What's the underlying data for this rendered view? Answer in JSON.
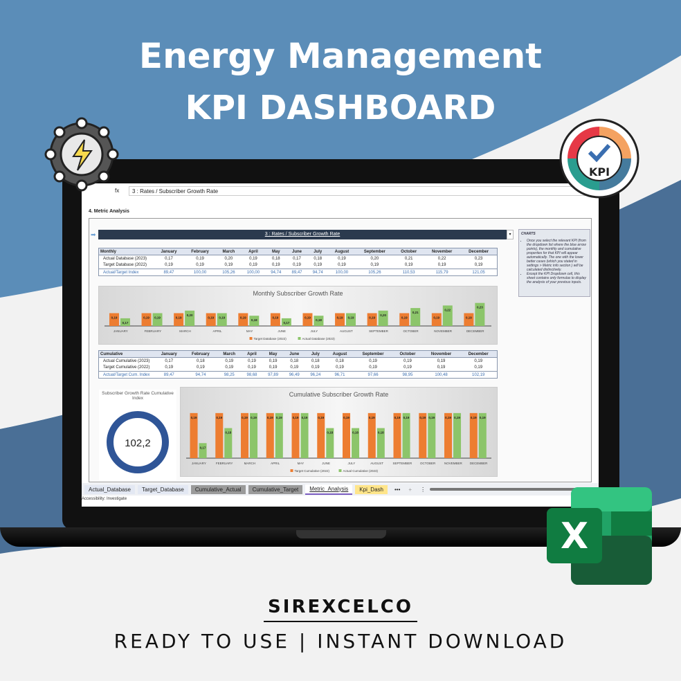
{
  "banner": {
    "title_line1": "Energy Management",
    "title_line2": "KPI DASHBOARD",
    "brand": "SIREXCELCO",
    "tagline": "READY TO USE | INSTANT DOWNLOAD",
    "kpi_badge": "KPI",
    "excel_letter": "X"
  },
  "colors": {
    "target": "#ed7d31",
    "actual": "#8cc56a",
    "header": "#2b3a4e",
    "index_text": "#3a6eb0",
    "donut": "#2f5597"
  },
  "sheet": {
    "formula_value": "3 : Rates / Subscriber Growth Rate",
    "section_title": "4. Metric Analysis",
    "kpi_dropdown": "3 : Rates / Subscriber Growth Rate",
    "months": [
      "January",
      "February",
      "March",
      "April",
      "May",
      "June",
      "July",
      "August",
      "September",
      "October",
      "November",
      "December"
    ],
    "monthly": {
      "header": "Monthly",
      "rows": [
        {
          "label": "Actual Database (2023)",
          "values": [
            "0,17",
            "0,19",
            "0,20",
            "0,19",
            "0,18",
            "0,17",
            "0,18",
            "0,19",
            "0,20",
            "0,21",
            "0,22",
            "0,23"
          ]
        },
        {
          "label": "Target Database (2022)",
          "values": [
            "0,19",
            "0,19",
            "0,19",
            "0,19",
            "0,19",
            "0,19",
            "0,19",
            "0,19",
            "0,19",
            "0,19",
            "0,19",
            "0,19"
          ]
        },
        {
          "label": "Actual/Target Index",
          "values": [
            "89,47",
            "100,00",
            "105,26",
            "100,00",
            "94,74",
            "89,47",
            "94,74",
            "100,00",
            "105,26",
            "110,53",
            "115,79",
            "121,05"
          ]
        }
      ]
    },
    "cumulative": {
      "header": "Cumulative",
      "rows": [
        {
          "label": "Actual Cumulative (2023)",
          "values": [
            "0,17",
            "0,18",
            "0,19",
            "0,19",
            "0,19",
            "0,18",
            "0,18",
            "0,18",
            "0,19",
            "0,19",
            "0,19",
            "0,19"
          ]
        },
        {
          "label": "Target Cumulative (2022)",
          "values": [
            "0,19",
            "0,19",
            "0,19",
            "0,19",
            "0,19",
            "0,19",
            "0,19",
            "0,19",
            "0,19",
            "0,19",
            "0,19",
            "0,19"
          ]
        },
        {
          "label": "Actual/Target Cum. Index",
          "values": [
            "89,47",
            "94,74",
            "98,25",
            "98,68",
            "97,89",
            "96,49",
            "96,24",
            "96,71",
            "97,66",
            "98,95",
            "100,48",
            "102,19"
          ]
        }
      ]
    },
    "notes": {
      "title": "CHARTS",
      "items": [
        "Once you select the relevant KPI (from the dropdown list where the blue arrow points), the monthly and cumulative properties for that KPI will appear automatically. The one with the lower better cases (which you stated in settings > Metric info section ) will be calculated distinctively.",
        "Except the KPI Dropdown cell, this sheet contains only formulas to display the analysis of your previous inputs."
      ]
    },
    "donut": {
      "title": "Subscriber Growth Rate Cumulative Index",
      "value": "102,2",
      "fill_percent": 100
    },
    "tabs": [
      "Actual_Database",
      "Target_Database",
      "Cumulative_Actual",
      "Cumulative_Target",
      "Metric_Analysis",
      "Kpi_Dash"
    ],
    "active_tab": "Metric_Analysis",
    "status": "Accessibility: Investigate"
  },
  "chart_data": [
    {
      "type": "bar",
      "title": "Monthly Subscriber Growth Rate",
      "categories": [
        "JANUARY",
        "FEBRUARY",
        "MARCH",
        "APRIL",
        "MAY",
        "JUNE",
        "JULY",
        "AUGUST",
        "SEPTEMBER",
        "OCTOBER",
        "NOVEMBER",
        "DECEMBER"
      ],
      "series": [
        {
          "name": "Target Database (2022)",
          "values": [
            0.19,
            0.19,
            0.19,
            0.19,
            0.19,
            0.19,
            0.19,
            0.19,
            0.19,
            0.19,
            0.19,
            0.19
          ]
        },
        {
          "name": "Actual Database (2023)",
          "values": [
            0.17,
            0.19,
            0.2,
            0.19,
            0.18,
            0.17,
            0.18,
            0.19,
            0.2,
            0.21,
            0.22,
            0.23
          ]
        }
      ],
      "ylim": [
        0.14,
        0.24
      ],
      "legend": "bottom",
      "grid": true
    },
    {
      "type": "bar",
      "title": "Cumulative Subscriber Growth Rate",
      "categories": [
        "JANUARY",
        "FEBRUARY",
        "MARCH",
        "APRIL",
        "MAY",
        "JUNE",
        "JULY",
        "AUGUST",
        "SEPTEMBER",
        "OCTOBER",
        "NOVEMBER",
        "DECEMBER"
      ],
      "series": [
        {
          "name": "Target Cumulative (2022)",
          "values": [
            0.19,
            0.19,
            0.19,
            0.19,
            0.19,
            0.19,
            0.19,
            0.19,
            0.19,
            0.19,
            0.19,
            0.19
          ]
        },
        {
          "name": "Actual Cumulative (2023)",
          "values": [
            0.17,
            0.18,
            0.19,
            0.19,
            0.19,
            0.18,
            0.18,
            0.18,
            0.19,
            0.19,
            0.19,
            0.19
          ]
        }
      ],
      "ylim": [
        0.16,
        0.195
      ],
      "legend": "bottom",
      "grid": false
    }
  ]
}
